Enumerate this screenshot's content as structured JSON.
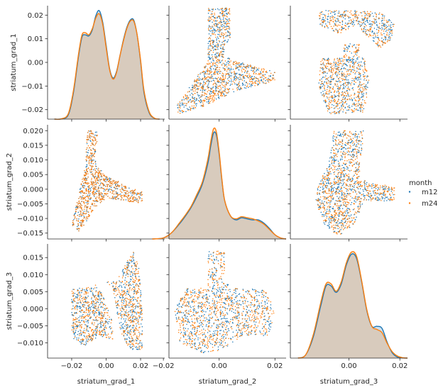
{
  "chart_data": {
    "type": "scatter",
    "layout": "pairplot",
    "variables": [
      "striatum_grad_1",
      "striatum_grad_2",
      "striatum_grad_3"
    ],
    "axes": {
      "striatum_grad_1": {
        "range": [
          -0.034,
          0.034
        ],
        "ticks": [
          -0.02,
          0.0,
          0.02
        ],
        "tick_labels": [
          "−0.02",
          "0.00",
          "0.02"
        ]
      },
      "striatum_grad_2": {
        "range": [
          -0.018,
          0.024
        ],
        "ticks": [
          -0.02,
          0.0,
          0.02
        ],
        "tick_labels": [
          "−0.02",
          "0.00",
          "0.02"
        ]
      },
      "striatum_grad_3": {
        "range": [
          -0.023,
          0.023
        ],
        "ticks": [
          0.0,
          0.02
        ],
        "tick_labels": [
          "0.00",
          "0.02"
        ]
      }
    },
    "y_axes": {
      "striatum_grad_1": {
        "range": [
          -0.024,
          0.024
        ],
        "ticks": [
          -0.02,
          -0.01,
          0.0,
          0.01,
          0.02
        ],
        "tick_labels": [
          "−0.02",
          "−0.01",
          "0.00",
          "0.01",
          "0.02"
        ]
      },
      "striatum_grad_2": {
        "range": [
          -0.017,
          0.022
        ],
        "ticks": [
          -0.015,
          -0.01,
          -0.005,
          0.0,
          0.005,
          0.01,
          0.015,
          0.02
        ],
        "tick_labels": [
          "−0.015",
          "−0.010",
          "−0.005",
          "0.000",
          "0.005",
          "0.010",
          "0.015",
          "0.020"
        ]
      },
      "striatum_grad_3": {
        "range": [
          -0.0145,
          0.019
        ],
        "ticks": [
          -0.01,
          -0.005,
          0.0,
          0.005,
          0.01,
          0.015
        ],
        "tick_labels": [
          "−0.010",
          "−0.005",
          "0.000",
          "0.005",
          "0.010",
          "0.015"
        ]
      }
    },
    "series": [
      {
        "name": "m12",
        "color": "#1f77b4"
      },
      {
        "name": "m24",
        "color": "#ff7f0e"
      }
    ],
    "legend": {
      "title": "month",
      "placement": "right"
    },
    "diagonal": {
      "type": "kde",
      "striatum_grad_1": {
        "x": [
          -0.03,
          -0.026,
          -0.022,
          -0.019,
          -0.016,
          -0.014,
          -0.012,
          -0.01,
          -0.008,
          -0.006,
          -0.004,
          -0.002,
          0.0,
          0.002,
          0.004,
          0.006,
          0.008,
          0.01,
          0.012,
          0.014,
          0.016,
          0.018,
          0.02,
          0.022,
          0.025,
          0.028,
          0.031
        ],
        "m12": [
          0.0,
          0.2,
          4,
          25,
          60,
          78,
          80,
          79,
          85,
          98,
          103,
          92,
          70,
          48,
          39,
          45,
          60,
          75,
          87,
          94,
          94,
          80,
          55,
          25,
          6,
          0.8,
          0.0
        ],
        "m24": [
          0.0,
          0.3,
          5,
          27,
          62,
          80,
          82,
          80,
          86,
          96,
          100,
          90,
          68,
          47,
          38,
          44,
          60,
          74,
          86,
          93,
          93,
          80,
          56,
          27,
          7,
          1.0,
          0.0
        ]
      },
      "striatum_grad_2": {
        "x": [
          -0.024,
          -0.02,
          -0.017,
          -0.014,
          -0.012,
          -0.01,
          -0.008,
          -0.006,
          -0.004,
          -0.003,
          -0.002,
          -0.001,
          0.0,
          0.001,
          0.002,
          0.004,
          0.006,
          0.008,
          0.01,
          0.012,
          0.014,
          0.016,
          0.018,
          0.02,
          0.022,
          0.024
        ],
        "m12": [
          0.0,
          1,
          6,
          15,
          22,
          30,
          40,
          52,
          72,
          88,
          100,
          98,
          80,
          55,
          36,
          22,
          18,
          20,
          19,
          18,
          18,
          15,
          10,
          4,
          1,
          0.0
        ],
        "m24": [
          0.0,
          1,
          6,
          16,
          23,
          31,
          42,
          54,
          76,
          92,
          104,
          101,
          82,
          56,
          36,
          22,
          19,
          21,
          20,
          19,
          17,
          14,
          9,
          4,
          1,
          0.0
        ]
      },
      "striatum_grad_3": {
        "x": [
          -0.02,
          -0.017,
          -0.014,
          -0.011,
          -0.009,
          -0.007,
          -0.005,
          -0.003,
          -0.001,
          0.001,
          0.003,
          0.005,
          0.007,
          0.009,
          0.011,
          0.013,
          0.015,
          0.017,
          0.019,
          0.021,
          0.023
        ],
        "m12": [
          0.0,
          3,
          20,
          50,
          68,
          68,
          62,
          70,
          88,
          98,
          94,
          72,
          45,
          30,
          30,
          28,
          15,
          5,
          1,
          0.2,
          0.0
        ],
        "m24": [
          0.0,
          3,
          22,
          53,
          70,
          70,
          63,
          72,
          90,
          100,
          96,
          73,
          46,
          30,
          27,
          24,
          14,
          6,
          2,
          0.4,
          0.0
        ]
      }
    }
  }
}
